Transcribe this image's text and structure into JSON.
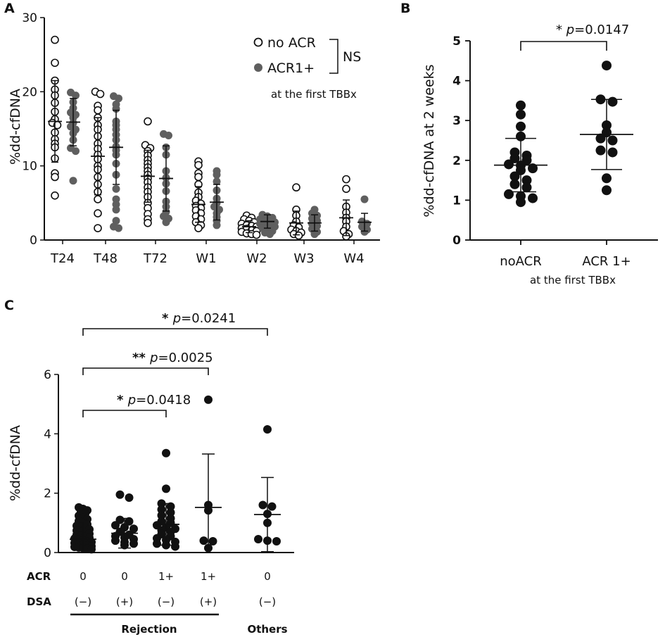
{
  "chart_data": [
    {
      "panel": "A",
      "type": "scatter",
      "ylabel": "%dd-cfDNA",
      "ylim": [
        0,
        30
      ],
      "yticks": [
        0,
        10,
        20,
        30
      ],
      "categories": [
        "T24",
        "T48",
        "T72",
        "W1",
        "W2",
        "W3",
        "W4"
      ],
      "legend": {
        "items": [
          "no ACR",
          "ACR1+"
        ],
        "sig": "NS",
        "note": "at the first TBBx"
      },
      "colors": {
        "acr": "#5f5f5f",
        "noacr_fill": "#ffffff",
        "ink": "#111111"
      },
      "series": [
        {
          "name": "no ACR",
          "style": "open",
          "points": [
            [
              27,
              23.9,
              21.5,
              20.3,
              19.5,
              18.5,
              17.3,
              16.3,
              15.8,
              15.5,
              14.5,
              13.6,
              13,
              12.5,
              11,
              9,
              8.5,
              6
            ],
            [
              20,
              19.7,
              18.1,
              17.5,
              16.5,
              15.5,
              14.9,
              14,
              13,
              12.3,
              11.5,
              10.9,
              10,
              9.5,
              8.5,
              7.5,
              6.5,
              5.5,
              3.6,
              1.6
            ],
            [
              16,
              12.8,
              12.4,
              12,
              11.4,
              10.8,
              10.3,
              9.8,
              9.3,
              8.8,
              8.3,
              7.8,
              7.1,
              6.5,
              5.8,
              5,
              4.3,
              3.5,
              2.8,
              2.3
            ],
            [
              10.6,
              10.1,
              9,
              8.5,
              7.5,
              6.4,
              5.8,
              5.3,
              4.9,
              4.6,
              4.3,
              4,
              3.6,
              3.2,
              2.8,
              2.4,
              2,
              1.6
            ],
            [
              3.3,
              3,
              2.8,
              2.6,
              2.4,
              2.2,
              2,
              1.9,
              1.8,
              1.6,
              1.5,
              1.3,
              1.2,
              1.1,
              0.9,
              0.8,
              0.7
            ],
            [
              7.1,
              4.1,
              3.3,
              2.5,
              2,
              1.7,
              1.4,
              1.2,
              1,
              0.8,
              0.6
            ],
            [
              8.2,
              6.9,
              4.5,
              3.7,
              3,
              2.5,
              1.8,
              1.2,
              0.8,
              0.5
            ]
          ],
          "mean": [
            16,
            11.3,
            8.6,
            4.8,
            1.8,
            2.3,
            3
          ],
          "sd": [
            5.5,
            5.2,
            3.5,
            2.4,
            0.8,
            1.6,
            2.4
          ]
        },
        {
          "name": "ACR1+",
          "style": "filled",
          "points": [
            [
              19.9,
              19.5,
              18.6,
              17.8,
              17.2,
              16.9,
              16.5,
              15.8,
              15.3,
              14.9,
              14.4,
              13.5,
              12.4,
              12,
              8
            ],
            [
              19.4,
              19.1,
              18.3,
              17.7,
              16,
              15.5,
              14.9,
              14.2,
              13.5,
              12.6,
              12.1,
              11.5,
              10.3,
              8.8,
              6.9,
              5.5,
              4.8,
              4.1,
              2.6,
              1.8,
              1.6
            ],
            [
              14.3,
              14.1,
              12.5,
              11.5,
              9.3,
              8.4,
              7.6,
              6.6,
              5.2,
              4.5,
              3.8,
              3.2,
              2.9,
              2.4
            ],
            [
              9.3,
              8.8,
              7.9,
              6.7,
              5.6,
              5,
              4.5,
              4.1,
              3.6,
              3.1,
              2.6,
              2
            ],
            [
              3.4,
              3.2,
              3,
              2.8,
              2.6,
              2.5,
              2.4,
              2.2,
              2.1,
              2,
              1.8,
              1.6,
              1.4,
              1.2,
              1,
              0.8
            ],
            [
              4.1,
              3.6,
              3.3,
              2.9,
              2.6,
              2.2,
              1.9,
              1.5,
              1.1,
              0.8
            ],
            [
              5.5,
              2.5,
              2.2,
              1.8,
              1.4,
              1.1
            ]
          ],
          "mean": [
            15.9,
            12.5,
            8.3,
            5.1,
            2.5,
            2.3,
            2.4
          ],
          "sd": [
            3.2,
            5,
            4.4,
            2.4,
            0.9,
            1.1,
            1.2
          ]
        }
      ]
    },
    {
      "panel": "B",
      "type": "scatter",
      "ylabel": "%dd-cfDNA at 2 weeks",
      "xlabel": "at the first TBBx",
      "ylim": [
        0,
        5
      ],
      "yticks": [
        0,
        1,
        2,
        3,
        4,
        5
      ],
      "categories": [
        "noACR",
        "ACR 1+"
      ],
      "groups": [
        {
          "name": "noACR",
          "values": [
            3.38,
            3.15,
            2.85,
            2.6,
            2.2,
            2.12,
            2.05,
            2,
            1.9,
            1.87,
            1.8,
            1.75,
            1.6,
            1.5,
            1.4,
            1.32,
            1.15,
            1.1,
            1.05,
            0.95
          ],
          "mean": 1.88,
          "sd": 0.67
        },
        {
          "name": "ACR 1+",
          "values": [
            4.38,
            3.53,
            3.47,
            2.88,
            2.7,
            2.55,
            2.5,
            2.25,
            2.2,
            1.55,
            1.25
          ],
          "mean": 2.65,
          "sd": 0.88
        }
      ],
      "comparisons": [
        {
          "from": 0,
          "to": 1,
          "stars": "*",
          "p_label": "p",
          "p_value": "=0.0147"
        }
      ]
    },
    {
      "panel": "C",
      "type": "scatter",
      "ylabel": "%dd-cfDNA",
      "ylim": [
        0,
        6
      ],
      "yticks": [
        0,
        2,
        4,
        6
      ],
      "row_labels": [
        "ACR",
        "DSA"
      ],
      "groups": [
        {
          "acr": "0",
          "dsa": "(−)",
          "values": [
            1.52,
            1.47,
            1.42,
            1.36,
            1.3,
            1.24,
            1.18,
            1.12,
            1.06,
            1.0,
            0.95,
            0.9,
            0.86,
            0.82,
            0.78,
            0.74,
            0.7,
            0.66,
            0.63,
            0.6,
            0.56,
            0.53,
            0.5,
            0.47,
            0.44,
            0.41,
            0.38,
            0.35,
            0.32,
            0.29,
            0.26,
            0.24,
            0.21,
            0.19,
            0.17,
            0.15,
            0.13,
            0.11
          ],
          "mean": 0.45,
          "sd": 0.6
        },
        {
          "acr": "0",
          "dsa": "(+)",
          "values": [
            1.95,
            1.85,
            1.1,
            1.05,
            0.92,
            0.85,
            0.8,
            0.7,
            0.6,
            0.55,
            0.5,
            0.45,
            0.4,
            0.35,
            0.3,
            0.25
          ],
          "mean": 0.65,
          "sd": 0.5
        },
        {
          "acr": "1+",
          "dsa": "(−)",
          "values": [
            3.35,
            2.15,
            1.65,
            1.55,
            1.45,
            1.35,
            1.25,
            1.15,
            1.05,
            1.0,
            0.92,
            0.85,
            0.8,
            0.75,
            0.7,
            0.62,
            0.55,
            0.48,
            0.42,
            0.36,
            0.3,
            0.25,
            0.2
          ],
          "mean": 0.95,
          "sd": 0.7
        },
        {
          "acr": "1+",
          "dsa": "(+)",
          "values": [
            5.15,
            1.6,
            1.42,
            0.4,
            0.38,
            0.15
          ],
          "mean": 1.52,
          "sd": 1.8
        },
        {
          "acr": "0",
          "dsa": "(−)",
          "values": [
            4.15,
            1.6,
            1.55,
            1.3,
            1.0,
            0.45,
            0.4,
            0.38
          ],
          "mean": 1.28,
          "sd": 1.25
        }
      ],
      "brackets": [
        {
          "from": 0,
          "to": 5,
          "stars": "*",
          "p_label": "p",
          "p_value": "=0.0241"
        },
        {
          "from": 0,
          "to": 4,
          "stars": "**",
          "p_label": "p",
          "p_value": "=0.0025"
        },
        {
          "from": 0,
          "to": 3,
          "stars": "*",
          "p_label": "p",
          "p_value": "=0.0418"
        }
      ],
      "section_labels": [
        "Rejection",
        "Others"
      ]
    }
  ]
}
